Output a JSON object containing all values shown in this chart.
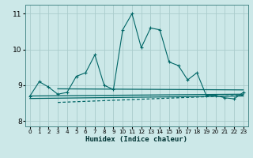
{
  "xlabel": "Humidex (Indice chaleur)",
  "background_color": "#cce8e8",
  "grid_color": "#aacccc",
  "line_color": "#006666",
  "xlim": [
    -0.5,
    23.5
  ],
  "ylim": [
    7.85,
    11.25
  ],
  "yticks": [
    8,
    9,
    10,
    11
  ],
  "xticks": [
    0,
    1,
    2,
    3,
    4,
    5,
    6,
    7,
    8,
    9,
    10,
    11,
    12,
    13,
    14,
    15,
    16,
    17,
    18,
    19,
    20,
    21,
    22,
    23
  ],
  "main_line_x": [
    0,
    1,
    2,
    3,
    4,
    5,
    6,
    7,
    8,
    9,
    10,
    11,
    12,
    13,
    14,
    15,
    16,
    17,
    18,
    19,
    20,
    21,
    22,
    23
  ],
  "main_line_y": [
    8.7,
    9.1,
    8.95,
    8.75,
    8.8,
    9.25,
    9.35,
    9.85,
    9.0,
    8.88,
    10.55,
    11.0,
    10.05,
    10.6,
    10.55,
    9.65,
    9.55,
    9.15,
    9.35,
    8.72,
    8.72,
    8.65,
    8.62,
    8.8
  ],
  "flat_line1_x": [
    3,
    23
  ],
  "flat_line1_y": [
    8.9,
    8.87
  ],
  "flat_line2_x": [
    0,
    23
  ],
  "flat_line2_y": [
    8.7,
    8.75
  ],
  "flat_line3_x": [
    3,
    23
  ],
  "flat_line3_y": [
    8.52,
    8.72
  ],
  "flat_line4_x": [
    0,
    23
  ],
  "flat_line4_y": [
    8.63,
    8.7
  ]
}
